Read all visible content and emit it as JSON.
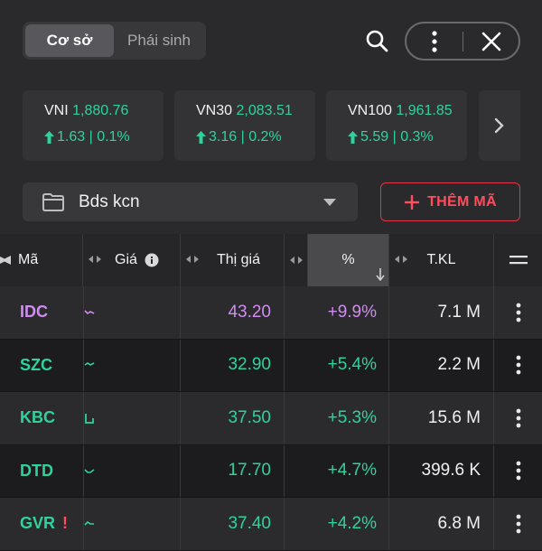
{
  "header": {
    "tabs": [
      {
        "label": "Cơ sở",
        "active": true
      },
      {
        "label": "Phái sinh",
        "active": false
      }
    ]
  },
  "indices": [
    {
      "name": "VNI",
      "value": "1,880.76",
      "change": "1.63 | 0.1%"
    },
    {
      "name": "VN30",
      "value": "2,083.51",
      "change": "3.16 | 0.2%"
    },
    {
      "name": "VN100",
      "value": "1,961.85",
      "change": "5.59 | 0.3%"
    }
  ],
  "watchlist": {
    "name": "Bds kcn"
  },
  "add_button": {
    "label": "THÊM MÃ"
  },
  "table": {
    "columns": {
      "symbol": "Mã",
      "price": "Giá",
      "last": "Thị giá",
      "pct": "%",
      "volume": "T.KL"
    },
    "rows": [
      {
        "symbol": "IDC",
        "last": "43.20",
        "pct": "+9.9%",
        "volume": "7.1 M",
        "color": "#d18cf2",
        "warning": ""
      },
      {
        "symbol": "SZC",
        "last": "32.90",
        "pct": "+5.4%",
        "volume": "2.2 M",
        "color": "#2fd39a",
        "warning": ""
      },
      {
        "symbol": "KBC",
        "last": "37.50",
        "pct": "+5.3%",
        "volume": "15.6 M",
        "color": "#2fd39a",
        "warning": ""
      },
      {
        "symbol": "DTD",
        "last": "17.70",
        "pct": "+4.7%",
        "volume": "399.6 K",
        "color": "#2fd39a",
        "warning": ""
      },
      {
        "symbol": "GVR",
        "last": "37.40",
        "pct": "+4.2%",
        "volume": "6.8 M",
        "color": "#2fd39a",
        "warning": "!"
      }
    ]
  },
  "colors": {
    "up": "#2fd39a",
    "ceiling": "#d18cf2",
    "accent_red": "#ff4d5e"
  },
  "icons": [
    "search-icon",
    "more-vertical-icon",
    "close-icon",
    "chevron-right-icon",
    "folder-icon",
    "caret-down-icon",
    "plus-icon",
    "sort-arrows-icon",
    "info-icon",
    "sort-down-icon",
    "menu-icon",
    "sparkline-icon",
    "arrow-up-icon"
  ]
}
